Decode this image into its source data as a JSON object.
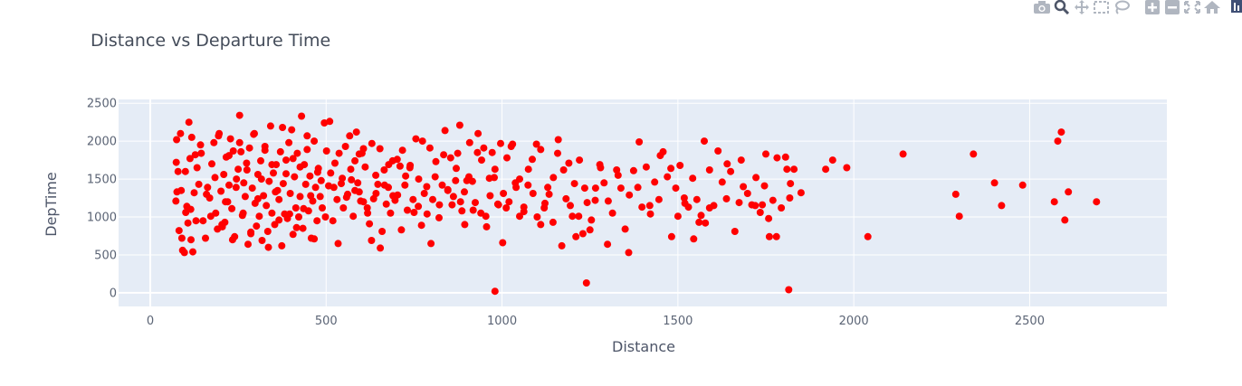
{
  "toolbar": {
    "icons": [
      "camera-icon",
      "zoom-icon",
      "pan-icon",
      "box-select-icon",
      "lasso-select-icon",
      "zoom-in-icon",
      "zoom-out-icon",
      "autoscale-icon",
      "reset-axes-icon",
      "plotly-logo-icon"
    ]
  },
  "colors": {
    "marker": "#ff0000",
    "plot_bg": "#e5ecf6",
    "grid": "#ffffff",
    "text": "#444c5a"
  },
  "chart_data": {
    "type": "scatter",
    "title": "Distance vs Departure Time",
    "xlabel": "Distance",
    "ylabel": "DepTime",
    "xlim": [
      -90,
      2890
    ],
    "ylim": [
      -180,
      2550
    ],
    "xticks": [
      0,
      500,
      1000,
      1500,
      2000,
      2500
    ],
    "yticks": [
      0,
      500,
      1000,
      1500,
      2000,
      2500
    ],
    "xtick_labels": [
      "0",
      "500",
      "1000",
      "1500",
      "2000",
      "2500"
    ],
    "ytick_labels": [
      "0",
      "500",
      "1000",
      "1500",
      "2000",
      "2500"
    ],
    "grid": true,
    "legend": "none",
    "series": [
      {
        "x": [
          73,
          74,
          76,
          79,
          82,
          86,
          88,
          92,
          97,
          101,
          104,
          107,
          110,
          113,
          116,
          118,
          121,
          125,
          128,
          133,
          138,
          143,
          150,
          157,
          163,
          169,
          175,
          181,
          186,
          191,
          196,
          201,
          205,
          209,
          212,
          216,
          220,
          224,
          228,
          232,
          236,
          240,
          245,
          250,
          254,
          258,
          262,
          266,
          270,
          274,
          278,
          282,
          286,
          290,
          294,
          298,
          302,
          306,
          310,
          314,
          318,
          322,
          326,
          330,
          334,
          338,
          342,
          346,
          350,
          354,
          358,
          362,
          366,
          370,
          374,
          378,
          382,
          386,
          390,
          394,
          398,
          402,
          406,
          410,
          414,
          418,
          422,
          426,
          430,
          434,
          438,
          442,
          446,
          450,
          454,
          458,
          462,
          466,
          470,
          474,
          478,
          483,
          489,
          495,
          501,
          507,
          513,
          519,
          525,
          531,
          537,
          543,
          549,
          555,
          561,
          567,
          572,
          577,
          582,
          586,
          590,
          594,
          598,
          602,
          606,
          611,
          617,
          623,
          629,
          635,
          641,
          647,
          653,
          659,
          665,
          671,
          677,
          683,
          689,
          696,
          703,
          710,
          717,
          724,
          731,
          739,
          747,
          755,
          763,
          771,
          779,
          787,
          795,
          803,
          812,
          821,
          830,
          838,
          846,
          854,
          862,
          868,
          874,
          880,
          886,
          893,
          900,
          908,
          916,
          924,
          932,
          940,
          948,
          956,
          964,
          972,
          980,
          988,
          996,
          1004,
          1012,
          1020,
          1030,
          1040,
          1050,
          1062,
          1075,
          1088,
          1100,
          1110,
          1120,
          1130,
          1145,
          1160,
          1175,
          1190,
          1200,
          1210,
          1220,
          1235,
          1250,
          1265,
          1280,
          1300,
          1330,
          1360,
          1390,
          1420,
          1450,
          1480,
          1500,
          1520,
          1545,
          1560,
          1575,
          1590,
          1640,
          1680,
          1720,
          1740,
          1750,
          1760,
          1780,
          1810,
          1820,
          1830,
          1850,
          1920,
          1940,
          1980,
          2040,
          2140,
          2290,
          2300,
          2340,
          2400,
          2420,
          2480,
          2570,
          2580,
          2590,
          2600,
          2610,
          2690,
          75,
          90,
          100,
          115,
          130,
          145,
          160,
          172,
          184,
          194,
          204,
          214,
          224,
          234,
          244,
          254,
          264,
          275,
          286,
          296,
          306,
          316,
          326,
          336,
          346,
          356,
          366,
          376,
          386,
          396,
          406,
          416,
          426,
          436,
          446,
          456,
          466,
          476,
          486,
          498,
          510,
          522,
          534,
          546,
          558,
          570,
          582,
          594,
          606,
          618,
          630,
          642,
          654,
          666,
          678,
          690,
          702,
          714,
          726,
          738,
          750,
          762,
          774,
          786,
          798,
          810,
          822,
          834,
          846,
          858,
          870,
          882,
          894,
          906,
          918,
          930,
          942,
          954,
          966,
          978,
          990,
          1002,
          1014,
          1026,
          1038,
          1050,
          1062,
          1074,
          1086,
          1098,
          1110,
          1122,
          1134,
          1146,
          1158,
          1170,
          1182,
          1194,
          1206,
          1218,
          1230,
          1242,
          1254,
          1266,
          1278,
          1290,
          1302,
          1314,
          1326,
          1338,
          1350,
          1362,
          1374,
          1386,
          1398,
          1410,
          1422,
          1434,
          1446,
          1458,
          1470,
          1482,
          1494,
          1506,
          1518,
          1530,
          1542,
          1554,
          1566,
          1578,
          1590,
          1602,
          1614,
          1626,
          1638,
          1650,
          1662,
          1674,
          1686,
          1698,
          1710,
          1722,
          1734,
          1746,
          1758,
          1770,
          1782,
          1794,
          1806,
          1818,
          980,
          1240,
          1815
        ],
        "y": [
          1210,
          1720,
          1330,
          1600,
          820,
          2100,
          1350,
          560,
          530,
          1060,
          1140,
          920,
          2250,
          1770,
          700,
          2050,
          540,
          1320,
          1820,
          1650,
          1430,
          1950,
          950,
          720,
          1390,
          1250,
          1700,
          1980,
          1050,
          840,
          2100,
          1340,
          870,
          1560,
          930,
          1790,
          1200,
          1420,
          2030,
          1110,
          1870,
          740,
          1500,
          1630,
          2340,
          1860,
          1020,
          1450,
          1270,
          1710,
          640,
          1910,
          780,
          1380,
          2090,
          1180,
          880,
          1560,
          1010,
          1740,
          690,
          1280,
          1930,
          1150,
          810,
          1470,
          2200,
          1050,
          1580,
          900,
          1690,
          1350,
          1230,
          1860,
          620,
          1440,
          1040,
          1750,
          980,
          1980,
          1310,
          2150,
          770,
          1530,
          1120,
          1840,
          1000,
          1270,
          2330,
          850,
          1690,
          1430,
          1890,
          1080,
          1540,
          720,
          1210,
          2000,
          1390,
          950,
          1640,
          1270,
          1120,
          2240,
          1870,
          1410,
          1580,
          950,
          1710,
          1230,
          1840,
          1440,
          1120,
          1930,
          1300,
          2070,
          1490,
          1010,
          1740,
          2120,
          1450,
          1330,
          1210,
          1840,
          1900,
          1660,
          1120,
          910,
          690,
          1240,
          1550,
          1430,
          1900,
          810,
          1620,
          1170,
          1390,
          1050,
          1740,
          1220,
          1290,
          1670,
          1880,
          1420,
          1090,
          1680,
          1230,
          2030,
          1500,
          890,
          1310,
          1040,
          1910,
          1230,
          1730,
          990,
          1420,
          2140,
          1350,
          1780,
          1270,
          1480,
          1840,
          2210,
          1080,
          1330,
          1480,
          1980,
          1470,
          1190,
          2100,
          1050,
          1910,
          870,
          1510,
          1850,
          1630,
          1170,
          1970,
          1310,
          1120,
          1200,
          1960,
          1390,
          1500,
          1070,
          1630,
          1310,
          1000,
          1890,
          1120,
          1390,
          930,
          2020,
          1620,
          1710,
          1010,
          740,
          1750,
          1380,
          830,
          1220,
          1650,
          640,
          1550,
          530,
          1990,
          1150,
          1810,
          1640,
          1010,
          1180,
          710,
          930,
          2000,
          1120,
          1700,
          1750,
          1150,
          1160,
          1830,
          740,
          740,
          1630,
          1440,
          1630,
          1320,
          1630,
          1750,
          1650,
          740,
          1830,
          1300,
          1010,
          1830,
          1450,
          1150,
          1420,
          1200,
          2000,
          2120,
          960,
          1330,
          1200,
          2020,
          720,
          1600,
          1100,
          950,
          1840,
          1300,
          1010,
          1520,
          2070,
          900,
          1200,
          1810,
          700,
          1390,
          1980,
          1050,
          1620,
          800,
          2100,
          1240,
          1500,
          1880,
          600,
          1690,
          1330,
          960,
          2180,
          1570,
          1040,
          1770,
          860,
          1660,
          1110,
          2070,
          1280,
          710,
          1590,
          1480,
          1000,
          2260,
          1390,
          650,
          1510,
          1260,
          1630,
          1350,
          1830,
          1200,
          1050,
          1970,
          1310,
          590,
          1420,
          1690,
          1280,
          1760,
          830,
          1540,
          1650,
          1060,
          1140,
          2000,
          1400,
          650,
          1530,
          1160,
          1820,
          1360,
          1160,
          1640,
          1200,
          900,
          1530,
          1090,
          1850,
          1750,
          1010,
          1280,
          1520,
          1160,
          660,
          1780,
          1930,
          1450,
          1010,
          1130,
          1420,
          1760,
          1960,
          900,
          1180,
          1300,
          1520,
          1840,
          620,
          1240,
          1150,
          1440,
          1010,
          780,
          1190,
          960,
          1380,
          1690,
          1450,
          1210,
          1050,
          1620,
          1380,
          840,
          1290,
          1610,
          1390,
          1130,
          1660,
          1040,
          1460,
          1230,
          1860,
          1530,
          740,
          1380,
          1680,
          1250,
          1130,
          1510,
          1230,
          1020,
          920,
          1620,
          1150,
          1870,
          1460,
          1240,
          1600,
          810,
          1190,
          1400,
          1310,
          1160,
          1520,
          1060,
          1410,
          980,
          1220,
          1780,
          1120,
          1790,
          1250,
          20,
          130,
          40
        ]
      }
    ]
  }
}
